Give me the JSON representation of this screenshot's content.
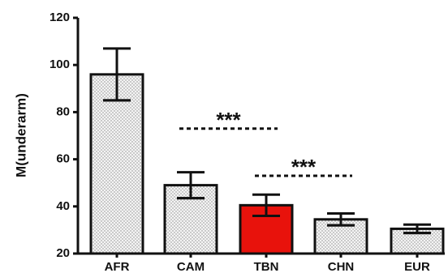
{
  "chart_data": {
    "type": "bar",
    "title": "",
    "xlabel": "",
    "ylabel": "M(underarm)",
    "ylim": [
      20,
      120
    ],
    "yticks": [
      20,
      40,
      60,
      80,
      100,
      120
    ],
    "categories": [
      "AFR",
      "CAM",
      "TBN",
      "CHN",
      "EUR"
    ],
    "values": [
      96,
      49,
      40.5,
      34.5,
      30.5
    ],
    "errors": [
      11,
      5.5,
      4.5,
      2.5,
      1.8
    ],
    "bar_colors": [
      "#ffffff",
      "#ffffff",
      "#e8120c",
      "#ffffff",
      "#ffffff"
    ],
    "bar_pattern": "dotted",
    "grid": false,
    "significance": [
      {
        "from": "CAM",
        "to": "TBN",
        "label": "***",
        "y": 73
      },
      {
        "from": "TBN",
        "to": "CHN",
        "label": "***",
        "y": 53
      }
    ]
  }
}
